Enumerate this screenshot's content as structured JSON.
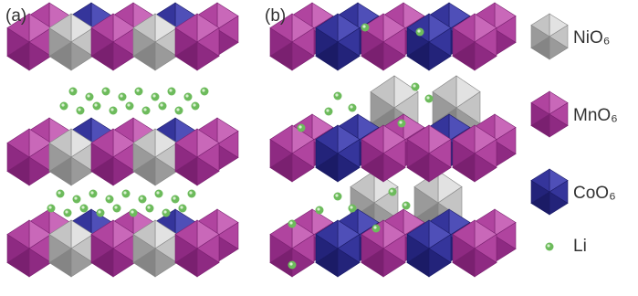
{
  "panels": [
    {
      "label": "(a)"
    },
    {
      "label": "(b)"
    }
  ],
  "legend": {
    "items": [
      {
        "label": "NiO₆"
      },
      {
        "label": "MnO₆"
      },
      {
        "label": "CoO₆"
      },
      {
        "label": "Li"
      }
    ]
  }
}
